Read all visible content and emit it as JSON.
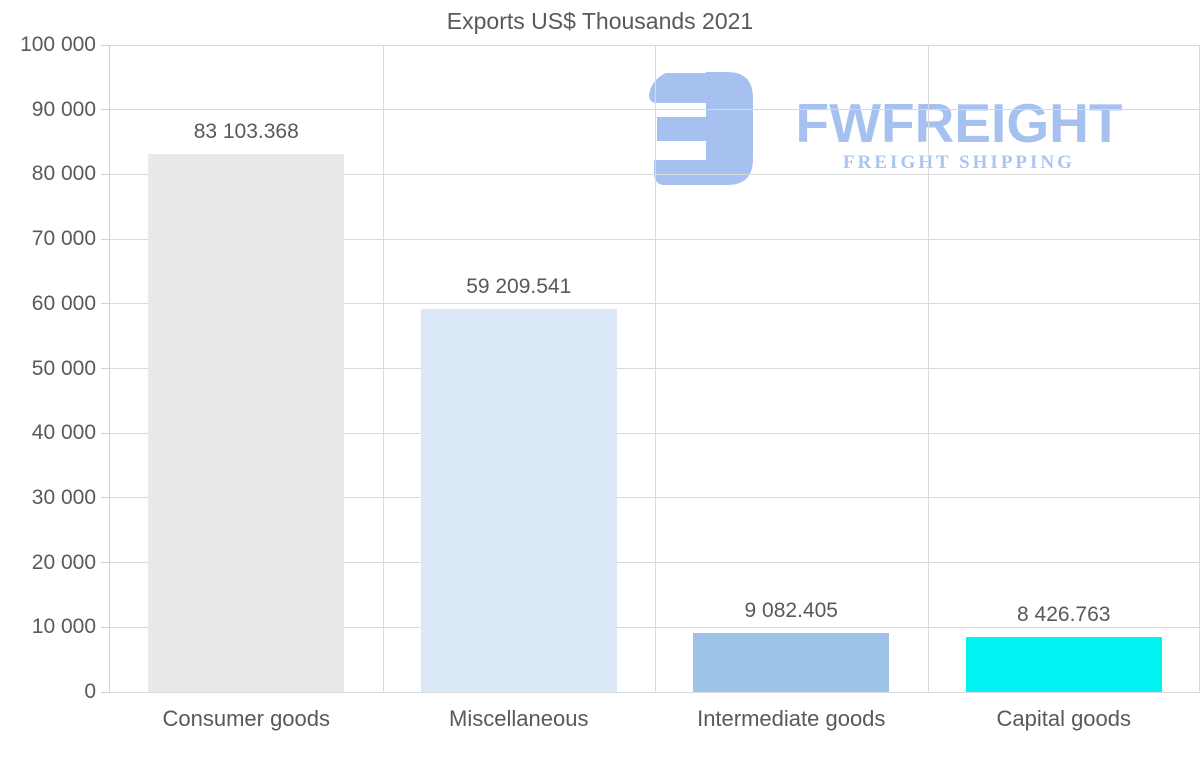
{
  "chart_data": {
    "type": "bar",
    "title": "Exports US$ Thousands 2021",
    "categories": [
      "Consumer goods",
      "Miscellaneous",
      "Intermediate goods",
      "Capital goods"
    ],
    "values": [
      83103.368,
      59209.541,
      9082.405,
      8426.763
    ],
    "value_labels": [
      "83 103.368",
      "59 209.541",
      "9 082.405",
      "8 426.763"
    ],
    "bar_colors": [
      "#e9e9e9",
      "#dbe9f7",
      "#9dc3e6",
      "#00f2f2"
    ],
    "xlabel": "",
    "ylabel": "",
    "ylim": [
      0,
      100000
    ],
    "ytick_interval": 10000,
    "ytick_labels": [
      "0",
      "10 000",
      "20 000",
      "30 000",
      "40 000",
      "50 000",
      "60 000",
      "70 000",
      "80 000",
      "90 000",
      "100 000"
    ],
    "grid": true,
    "legend_position": "none"
  },
  "watermark": {
    "brand": "FWFREIGHT",
    "tagline": "FREIGHT SHIPPING",
    "color": "#a6c1f0",
    "tagline_color": "#abc5f1",
    "icon": "fwfreight-monogram-icon"
  },
  "colors": {
    "background": "#ffffff",
    "text": "#595959",
    "gridline": "#d9d9d9"
  }
}
